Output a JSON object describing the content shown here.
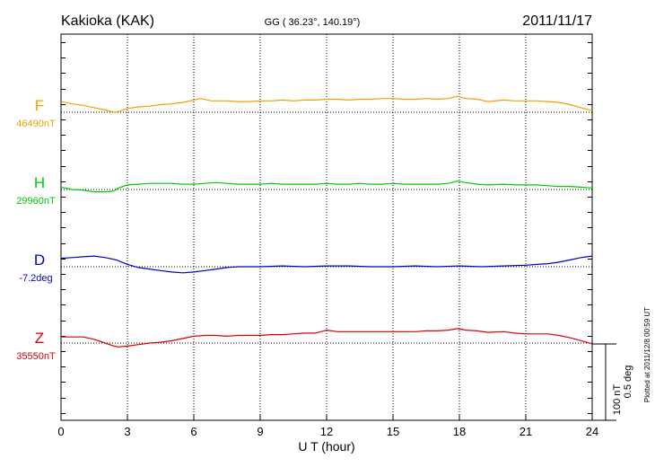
{
  "header": {
    "station": "Kakioka (KAK)",
    "coords": "GG ( 36.23°, 140.19°)",
    "date": "2011/11/17"
  },
  "plotted_note": "Plotted at 2011/12/8 00:59 UT",
  "scale_bar": {
    "line1": "100 nT",
    "line2": "0.5 deg"
  },
  "colors": {
    "F": "#f0a000",
    "H": "#00cc00",
    "D": "#0000cc",
    "Z": "#dd0000",
    "axis": "#000000"
  },
  "chart_data": {
    "type": "line",
    "xlabel": "U T (hour)",
    "xlim": [
      0,
      24
    ],
    "x_ticks": [
      "0",
      "3",
      "6",
      "9",
      "12",
      "15",
      "18",
      "21",
      "24"
    ],
    "grid": true,
    "series": [
      {
        "name": "F",
        "baseline_label": "46490nT",
        "color": "#f0a000",
        "x": [
          0,
          0.5,
          1,
          1.5,
          2,
          2.4,
          2.6,
          3,
          3.5,
          4,
          4.5,
          5,
          5.5,
          6,
          6.3,
          6.8,
          7.5,
          8,
          8.5,
          9,
          9.5,
          10,
          10.5,
          11,
          11.5,
          12,
          12.5,
          13,
          13.5,
          14,
          14.5,
          15,
          15.5,
          16,
          16.5,
          17,
          17.5,
          17.9,
          18.3,
          18.8,
          19.3,
          20,
          20.5,
          21,
          21.5,
          22,
          22.5,
          23,
          23.5,
          24
        ],
        "y": [
          0.14,
          0.11,
          0.09,
          0.06,
          0.03,
          0.0,
          0.01,
          0.05,
          0.07,
          0.08,
          0.1,
          0.11,
          0.13,
          0.16,
          0.18,
          0.15,
          0.15,
          0.14,
          0.14,
          0.15,
          0.15,
          0.16,
          0.15,
          0.16,
          0.16,
          0.17,
          0.17,
          0.16,
          0.17,
          0.17,
          0.18,
          0.18,
          0.17,
          0.17,
          0.18,
          0.17,
          0.18,
          0.21,
          0.18,
          0.17,
          0.14,
          0.16,
          0.15,
          0.15,
          0.15,
          0.14,
          0.13,
          0.1,
          0.06,
          0.02
        ]
      },
      {
        "name": "H",
        "baseline_label": "29960nT",
        "color": "#00cc00",
        "x": [
          0,
          0.5,
          1,
          1.5,
          2,
          2.4,
          2.6,
          3,
          3.5,
          4,
          4.5,
          5,
          5.5,
          6,
          6.5,
          7,
          7.5,
          8,
          8.5,
          9,
          9.5,
          10,
          10.5,
          11,
          11.5,
          12,
          12.5,
          13,
          13.5,
          14,
          14.5,
          15,
          15.5,
          16,
          16.5,
          17,
          17.5,
          17.9,
          18.3,
          18.8,
          19.3,
          20,
          20.5,
          21,
          21.5,
          22,
          22.5,
          23,
          23.5,
          24
        ],
        "y": [
          0.03,
          0.0,
          -0.01,
          -0.03,
          -0.03,
          -0.02,
          0.02,
          0.06,
          0.07,
          0.08,
          0.08,
          0.08,
          0.07,
          0.07,
          0.08,
          0.09,
          0.08,
          0.07,
          0.07,
          0.07,
          0.08,
          0.07,
          0.07,
          0.07,
          0.07,
          0.08,
          0.07,
          0.07,
          0.08,
          0.07,
          0.07,
          0.08,
          0.07,
          0.07,
          0.07,
          0.07,
          0.08,
          0.11,
          0.09,
          0.07,
          0.06,
          0.07,
          0.06,
          0.06,
          0.06,
          0.05,
          0.04,
          0.04,
          0.03,
          0.02
        ]
      },
      {
        "name": "D",
        "baseline_label": "-7.2deg",
        "color": "#0000cc",
        "x": [
          0,
          0.5,
          1,
          1.5,
          2,
          2.5,
          3,
          3.5,
          4,
          4.5,
          5,
          5.5,
          6,
          6.5,
          7,
          7.5,
          8,
          8.5,
          9,
          10,
          11,
          12,
          13,
          14,
          15,
          16,
          17,
          18,
          19,
          20,
          21,
          21.5,
          22,
          22.5,
          23,
          23.5,
          24
        ],
        "y": [
          0.11,
          0.12,
          0.13,
          0.14,
          0.12,
          0.09,
          0.03,
          -0.01,
          -0.03,
          -0.05,
          -0.07,
          -0.08,
          -0.07,
          -0.05,
          -0.03,
          -0.01,
          0.0,
          0.0,
          0.0,
          0.01,
          0.0,
          0.01,
          0.01,
          0.0,
          0.0,
          0.01,
          0.0,
          0.01,
          0.0,
          0.01,
          0.02,
          0.03,
          0.04,
          0.06,
          0.09,
          0.12,
          0.14
        ]
      },
      {
        "name": "Z",
        "baseline_label": "35550nT",
        "color": "#dd0000",
        "x": [
          0,
          0.5,
          1,
          1.5,
          2,
          2.4,
          2.6,
          3,
          3.5,
          4,
          4.5,
          5,
          5.5,
          6,
          6.5,
          7,
          7.5,
          8,
          8.5,
          9,
          9.5,
          10,
          10.5,
          11,
          11.5,
          12,
          12.5,
          13,
          13.5,
          14,
          14.5,
          15,
          15.5,
          16,
          16.5,
          17,
          17.5,
          17.9,
          18.3,
          18.8,
          19.3,
          20,
          20.5,
          21,
          21.5,
          22,
          22.5,
          23,
          23.5,
          24
        ],
        "y": [
          0.08,
          0.08,
          0.08,
          0.05,
          0.0,
          -0.04,
          -0.05,
          -0.04,
          -0.02,
          0.0,
          0.01,
          0.03,
          0.06,
          0.09,
          0.1,
          0.1,
          0.09,
          0.1,
          0.1,
          0.1,
          0.11,
          0.11,
          0.12,
          0.13,
          0.13,
          0.17,
          0.15,
          0.15,
          0.15,
          0.15,
          0.15,
          0.15,
          0.15,
          0.15,
          0.16,
          0.16,
          0.17,
          0.19,
          0.17,
          0.16,
          0.14,
          0.15,
          0.13,
          0.12,
          0.12,
          0.12,
          0.1,
          0.07,
          0.03,
          -0.01
        ]
      }
    ]
  }
}
